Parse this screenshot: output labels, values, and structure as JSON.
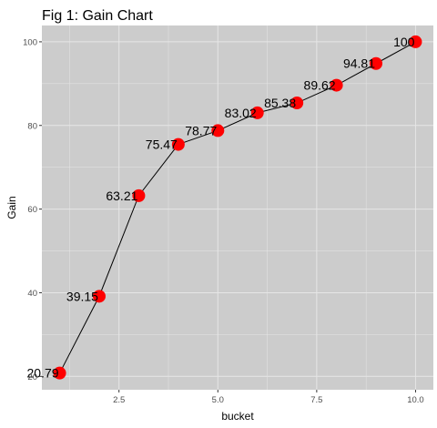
{
  "chart_data": {
    "type": "line",
    "title": "Fig 1: Gain Chart",
    "xlabel": "bucket",
    "ylabel": "Gain",
    "x": [
      1,
      2,
      3,
      4,
      5,
      6,
      7,
      8,
      9,
      10
    ],
    "series": [
      {
        "values": [
          20.79,
          39.15,
          63.21,
          75.47,
          78.77,
          83.02,
          85.38,
          89.62,
          94.81,
          100
        ],
        "labels": [
          "20.79",
          "39.15",
          "63.21",
          "75.47",
          "78.77",
          "83.02",
          "85.38",
          "89.62",
          "94.81",
          "100"
        ]
      }
    ],
    "xlim": [
      0.55,
      10.45
    ],
    "ylim": [
      16.8,
      103.9
    ],
    "x_ticks": [
      2.5,
      5.0,
      7.5,
      10.0
    ],
    "x_tick_labels": [
      "2.5",
      "5.0",
      "7.5",
      "10.0"
    ],
    "y_ticks": [
      20,
      40,
      60,
      80,
      100
    ],
    "y_tick_labels": [
      "20",
      "40",
      "60",
      "80",
      "100"
    ],
    "grid": true,
    "legend": "none",
    "colors": {
      "panel": "#cccccc",
      "grid": "#e6e6e6",
      "line": "#000000",
      "point": "#ff0000"
    }
  }
}
